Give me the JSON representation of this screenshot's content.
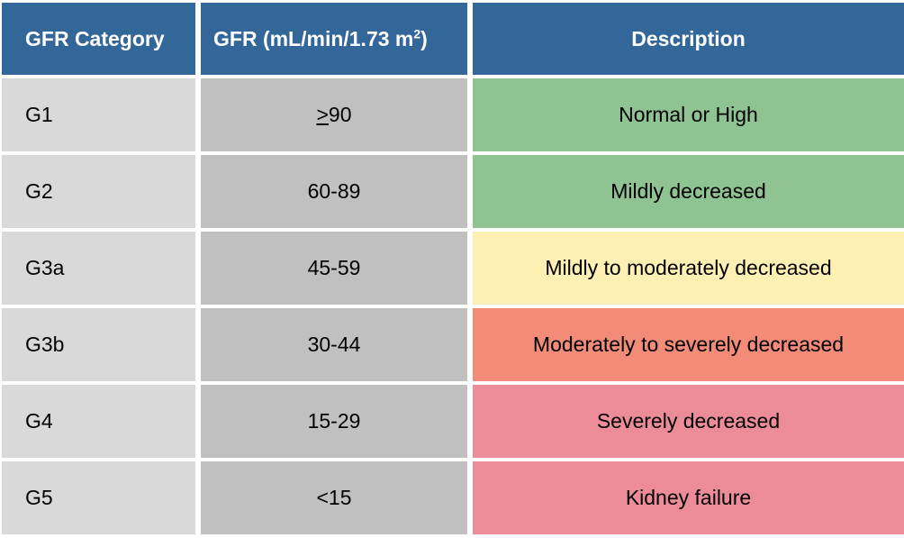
{
  "colors": {
    "header": "#336699",
    "category_cell": "#d9d9d9",
    "gfr_cell": "#c0c0c0",
    "green": "#8fc391",
    "yellow": "#fdf0b2",
    "salmon": "#f28c79",
    "pink": "#ec8c98"
  },
  "table": {
    "headers": {
      "category": "GFR Category",
      "gfr_prefix": "GFR (mL/min/1.73 m",
      "gfr_sup": "2",
      "gfr_suffix": ")",
      "description": "Description"
    },
    "rows": [
      {
        "category": "G1",
        "gfr_symbol": ">",
        "gfr_value": "90",
        "description": "Normal or High",
        "color": "#8fc391"
      },
      {
        "category": "G2",
        "gfr_symbol": "",
        "gfr_value": "60-89",
        "description": "Mildly decreased",
        "color": "#8fc391"
      },
      {
        "category": "G3a",
        "gfr_symbol": "",
        "gfr_value": "45-59",
        "description": "Mildly to moderately decreased",
        "color": "#fdf0b2"
      },
      {
        "category": "G3b",
        "gfr_symbol": "",
        "gfr_value": "30-44",
        "description": "Moderately to severely decreased",
        "color": "#f28c79"
      },
      {
        "category": "G4",
        "gfr_symbol": "",
        "gfr_value": "15-29",
        "description": "Severely decreased",
        "color": "#ec8c98"
      },
      {
        "category": "G5",
        "gfr_symbol": "",
        "gfr_value": "<15",
        "description": "Kidney failure",
        "color": "#ec8c98"
      }
    ]
  }
}
